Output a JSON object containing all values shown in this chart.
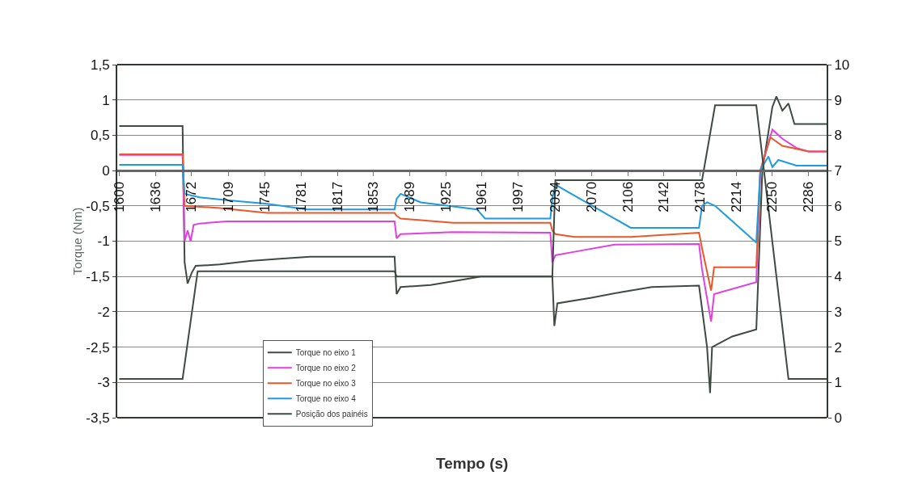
{
  "chart_data": {
    "type": "line",
    "xlabel": "Tempo (s)",
    "ylabel": "Torque (Nm)",
    "xlim": [
      1598,
      2304
    ],
    "xticks": [
      1600,
      1636,
      1672,
      1709,
      1745,
      1781,
      1817,
      1853,
      1889,
      1925,
      1961,
      1997,
      2034,
      2070,
      2106,
      2142,
      2178,
      2214,
      2250,
      2286
    ],
    "ylim": [
      -3.5,
      1.5
    ],
    "yticks": [
      {
        "value": 1.5,
        "label": "1,5"
      },
      1,
      {
        "value": 0.5,
        "label": "0,5"
      },
      0,
      {
        "value": -0.5,
        "label": "-0,5"
      },
      -1,
      {
        "value": -1.5,
        "label": "-1,5"
      },
      -2,
      {
        "value": -2.5,
        "label": "-2,5"
      },
      -3,
      {
        "value": -3.5,
        "label": "-3,5"
      }
    ],
    "y2lim": [
      0,
      10
    ],
    "y2ticks": [
      0,
      1,
      2,
      3,
      4,
      5,
      6,
      7,
      8,
      9,
      10
    ],
    "grid": "y",
    "legend": "bottom",
    "line_style": "solid",
    "marker": "none",
    "series": [
      {
        "name": "Torque no eixo 1",
        "color": "#3e4a42",
        "x": [
          1600,
          1663,
          1665,
          1668,
          1672,
          1676,
          1700,
          1730,
          1760,
          1790,
          1874,
          1876,
          1880,
          1910,
          1940,
          1960,
          2031,
          2033,
          2036,
          2070,
          2100,
          2130,
          2177,
          2185,
          2188,
          2190,
          2210,
          2234,
          2240,
          2250,
          2254,
          2260,
          2266,
          2272,
          2304
        ],
        "values": [
          0.63,
          0.63,
          -1.3,
          -1.6,
          -1.45,
          -1.35,
          -1.33,
          -1.28,
          -1.25,
          -1.22,
          -1.22,
          -1.75,
          -1.65,
          -1.62,
          -1.55,
          -1.5,
          -1.5,
          -2.2,
          -1.88,
          -1.8,
          -1.72,
          -1.65,
          -1.63,
          -2.5,
          -3.15,
          -2.5,
          -2.35,
          -2.25,
          0,
          0.9,
          1.05,
          0.85,
          0.95,
          0.66,
          0.66
        ]
      },
      {
        "name": "Torque no eixo 2",
        "color": "#e040e0",
        "x": [
          1600,
          1663,
          1665,
          1668,
          1671,
          1674,
          1680,
          1707,
          1874,
          1876,
          1880,
          1932,
          2029,
          2031,
          2034,
          2053,
          2093,
          2177,
          2180,
          2189,
          2192,
          2234,
          2238,
          2250,
          2260,
          2274,
          2286,
          2304
        ],
        "values": [
          0.22,
          0.22,
          -1.0,
          -0.85,
          -1.0,
          -0.77,
          -0.75,
          -0.72,
          -0.72,
          -0.96,
          -0.9,
          -0.87,
          -0.88,
          -1.3,
          -1.2,
          -1.15,
          -1.05,
          -1.04,
          -1.4,
          -2.14,
          -1.75,
          -1.58,
          0,
          0.58,
          0.45,
          0.32,
          0.27,
          0.27
        ]
      },
      {
        "name": "Torque no eixo 3",
        "color": "#e8582a",
        "x": [
          1600,
          1663,
          1665,
          1700,
          1747,
          1874,
          1876,
          1880,
          1932,
          2029,
          2031,
          2034,
          2053,
          2109,
          2177,
          2180,
          2189,
          2192,
          2234,
          2238,
          2248,
          2260,
          2286,
          2304
        ],
        "values": [
          0.23,
          0.23,
          -0.5,
          -0.53,
          -0.6,
          -0.6,
          -0.64,
          -0.68,
          -0.74,
          -0.74,
          -0.85,
          -0.9,
          -0.94,
          -0.94,
          -0.88,
          -1.1,
          -1.7,
          -1.37,
          -1.37,
          0,
          0.47,
          0.35,
          0.27,
          0.27
        ]
      },
      {
        "name": "Torque no eixo 4",
        "color": "#1e9be0",
        "x": [
          1600,
          1663,
          1665,
          1680,
          1707,
          1747,
          1787,
          1874,
          1876,
          1880,
          1900,
          1956,
          1964,
          2029,
          2031,
          2034,
          2093,
          2109,
          2177,
          2180,
          2185,
          2193,
          2234,
          2238,
          2246,
          2250,
          2256,
          2274,
          2304
        ],
        "values": [
          0.08,
          0.08,
          -0.33,
          -0.38,
          -0.42,
          -0.47,
          -0.55,
          -0.55,
          -0.4,
          -0.33,
          -0.45,
          -0.55,
          -0.68,
          -0.68,
          -0.4,
          -0.2,
          -0.68,
          -0.81,
          -0.81,
          -0.5,
          -0.45,
          -0.5,
          -1.02,
          0,
          0.2,
          0.05,
          0.15,
          0.07,
          0.07
        ]
      },
      {
        "name": "Posição dos painéis",
        "color": "#3e4a42",
        "axis": "y2",
        "x": [
          1600,
          1663,
          1678,
          1874,
          1876,
          2031,
          2034,
          2180,
          2193,
          2234,
          2266,
          2304
        ],
        "values": [
          1.1,
          1.1,
          4.15,
          4.15,
          4.0,
          4.0,
          6.73,
          6.73,
          8.85,
          8.85,
          1.1,
          1.1
        ]
      }
    ]
  }
}
